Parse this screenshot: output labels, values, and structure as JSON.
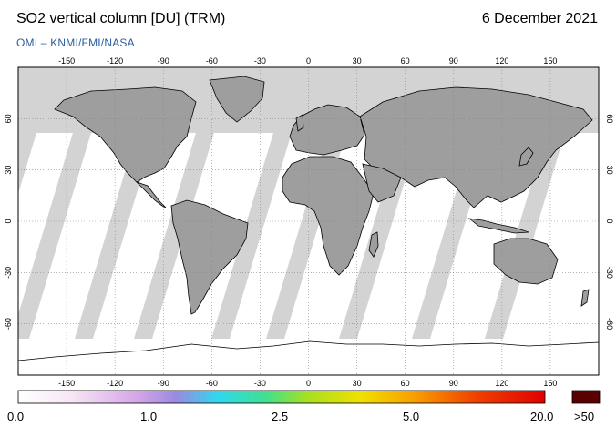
{
  "header": {
    "title": "SO2 vertical column [DU] (TRM)",
    "date": "6 December 2021",
    "credit": "OMI  –  KNMI/FMI/NASA"
  },
  "map": {
    "projection": "equirectangular",
    "lon_range": [
      -180,
      180
    ],
    "lat_range": [
      -90,
      90
    ],
    "lon_ticks": [
      "-150",
      "-120",
      "-90",
      "-60",
      "-30",
      "0",
      "30",
      "60",
      "90",
      "120",
      "150"
    ],
    "lat_ticks": [
      "60",
      "30",
      "0",
      "-30",
      "-60"
    ],
    "grid": "dotted",
    "colors": {
      "land": "#9e9e9e",
      "no_data": "#d3d3d3",
      "background": "#ffffff"
    }
  },
  "colorbar": {
    "labels": [
      "0.0",
      "1.0",
      "2.5",
      "5.0",
      "20.0"
    ],
    "overflow_label": ">50",
    "overflow_color": "#5a0000"
  }
}
